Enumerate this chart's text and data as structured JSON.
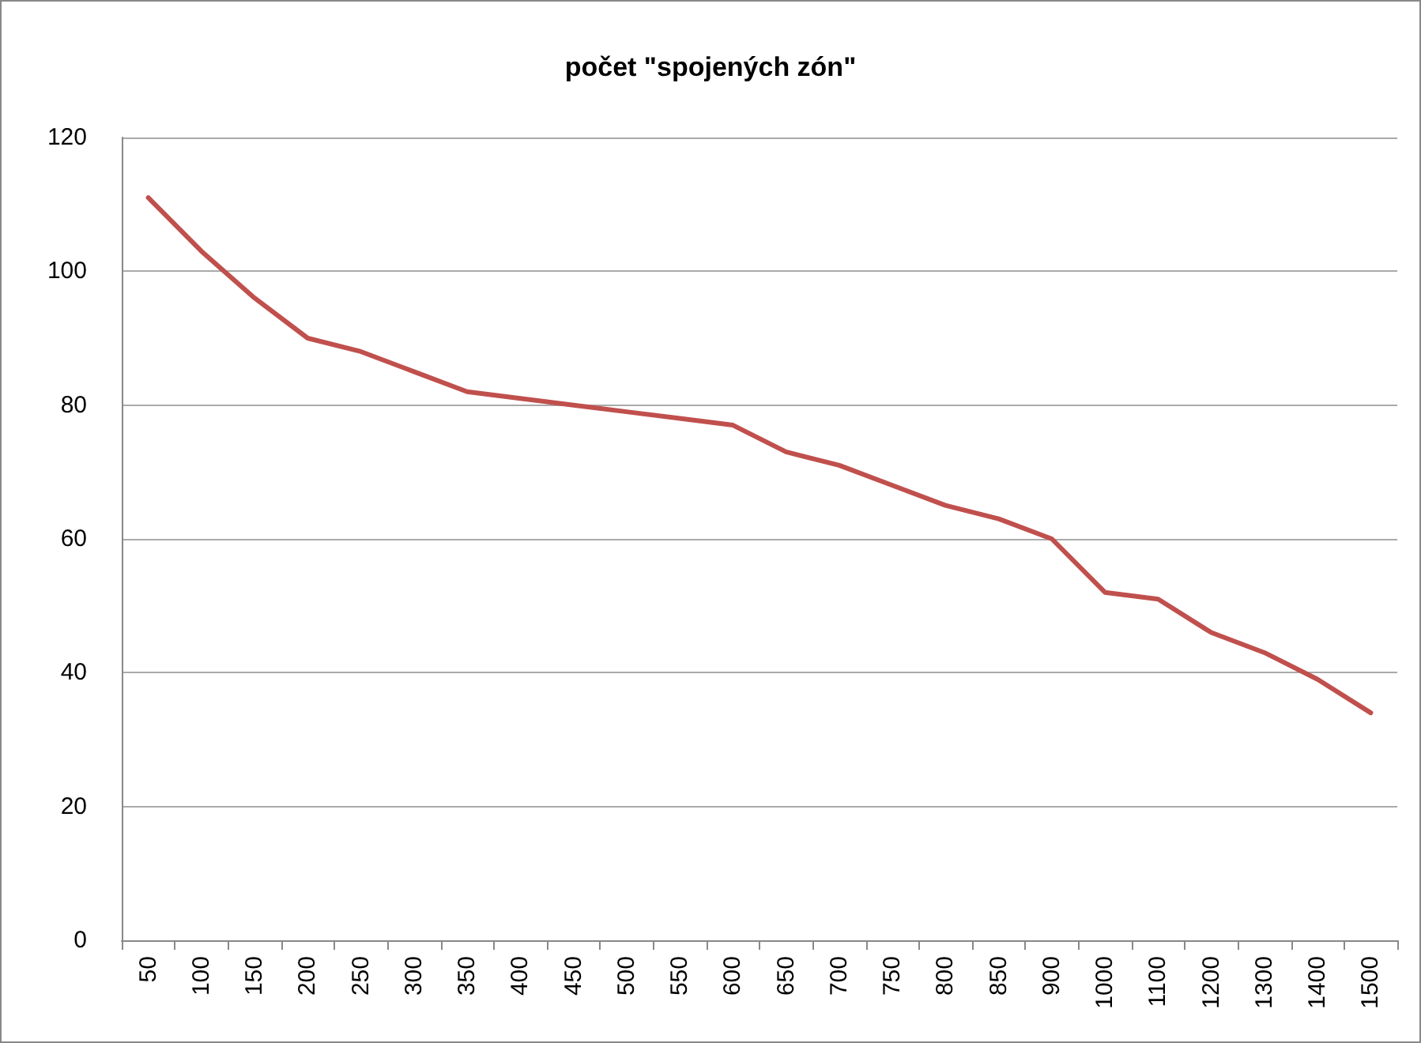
{
  "chart_data": {
    "type": "line",
    "title": "počet \"spojených zón\"",
    "categories": [
      "50",
      "100",
      "150",
      "200",
      "250",
      "300",
      "350",
      "400",
      "450",
      "500",
      "550",
      "600",
      "650",
      "700",
      "750",
      "800",
      "850",
      "900",
      "1000",
      "1100",
      "1200",
      "1300",
      "1400",
      "1500"
    ],
    "series": [
      {
        "color": "#c0504d",
        "values": [
          111,
          103,
          96,
          90,
          88,
          85,
          82,
          81,
          80,
          79,
          78,
          77,
          73,
          71,
          68,
          65,
          63,
          60,
          52,
          51,
          46,
          43,
          39,
          34
        ]
      }
    ],
    "ylim": [
      0,
      120
    ],
    "yticks": [
      0,
      20,
      40,
      60,
      80,
      100,
      120
    ],
    "grid": "y",
    "marker": "none",
    "line_style": "solid"
  }
}
